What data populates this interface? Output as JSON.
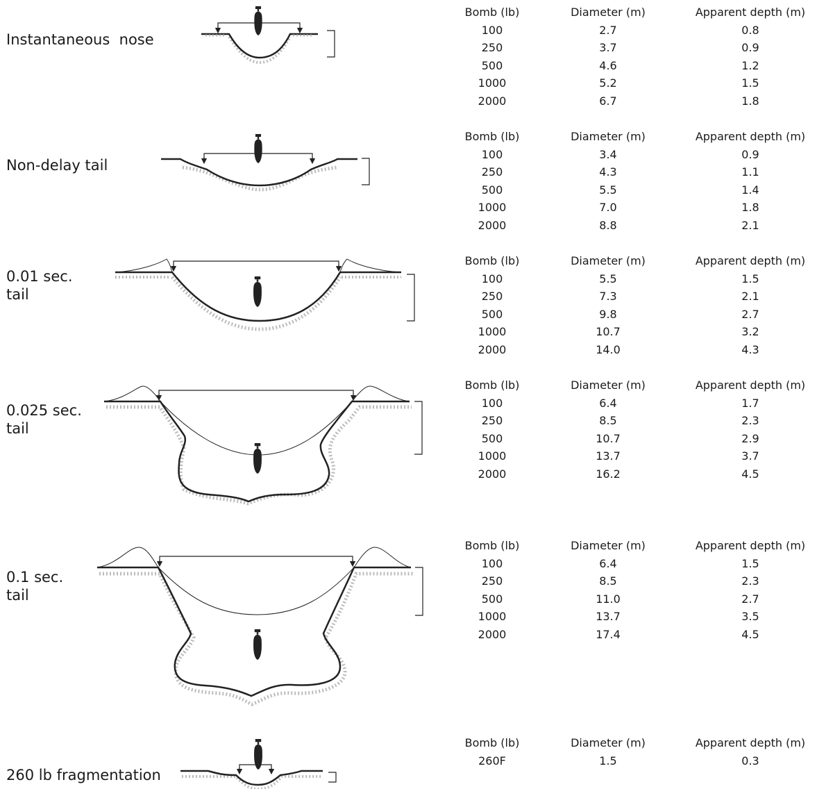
{
  "headers": [
    "Bomb (lb)",
    "Diameter (m)",
    "Apparent depth (m)"
  ],
  "sections": [
    {
      "label": "Instantaneous  nose",
      "rows": [
        [
          "100",
          "2.7",
          "0.8"
        ],
        [
          "250",
          "3.7",
          "0.9"
        ],
        [
          "500",
          "4.6",
          "1.2"
        ],
        [
          "1000",
          "5.2",
          "1.5"
        ],
        [
          "2000",
          "6.7",
          "1.8"
        ]
      ]
    },
    {
      "label": "Non-delay tail",
      "rows": [
        [
          "100",
          "3.4",
          "0.9"
        ],
        [
          "250",
          "4.3",
          "1.1"
        ],
        [
          "500",
          "5.5",
          "1.4"
        ],
        [
          "1000",
          "7.0",
          "1.8"
        ],
        [
          "2000",
          "8.8",
          "2.1"
        ]
      ]
    },
    {
      "label": "0.01 sec.\ntail",
      "rows": [
        [
          "100",
          "5.5",
          "1.5"
        ],
        [
          "250",
          "7.3",
          "2.1"
        ],
        [
          "500",
          "9.8",
          "2.7"
        ],
        [
          "1000",
          "10.7",
          "3.2"
        ],
        [
          "2000",
          "14.0",
          "4.3"
        ]
      ]
    },
    {
      "label": "0.025 sec.\ntail",
      "rows": [
        [
          "100",
          "6.4",
          "1.7"
        ],
        [
          "250",
          "8.5",
          "2.3"
        ],
        [
          "500",
          "10.7",
          "2.9"
        ],
        [
          "1000",
          "13.7",
          "3.7"
        ],
        [
          "2000",
          "16.2",
          "4.5"
        ]
      ]
    },
    {
      "label": "0.1 sec.\ntail",
      "rows": [
        [
          "100",
          "6.4",
          "1.5"
        ],
        [
          "250",
          "8.5",
          "2.3"
        ],
        [
          "500",
          "11.0",
          "2.7"
        ],
        [
          "1000",
          "13.7",
          "3.5"
        ],
        [
          "2000",
          "17.4",
          "4.5"
        ]
      ]
    },
    {
      "label": "260 lb fragmentation",
      "rows": [
        [
          "260F",
          "1.5",
          "0.3"
        ]
      ]
    }
  ]
}
